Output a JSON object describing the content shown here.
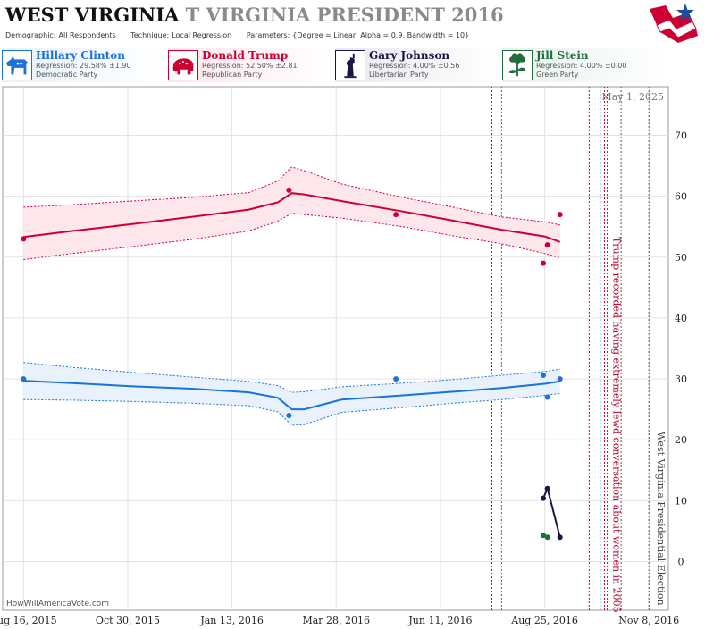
{
  "header": {
    "title_state": "WEST VIRGINIA",
    "title_sub": "T VIRGINIA PRESIDENT 2016",
    "meta": [
      {
        "label": "Demographic:",
        "value": "All Respondents"
      },
      {
        "label": "Technique:",
        "value": "Local Regression"
      },
      {
        "label": "Parameters:",
        "value": "{Degree = Linear, Alpha = 0.9, Bandwidth = 10}"
      }
    ]
  },
  "candidates": [
    {
      "name": "Hillary Clinton",
      "regression": "Regression: 29.58% ±1.90",
      "party": "Democratic Party",
      "color": "#1a73d9",
      "icon": "donkey-icon"
    },
    {
      "name": "Donald Trump",
      "regression": "Regression: 52.50% ±2.81",
      "party": "Republican Party",
      "color": "#cc0033",
      "icon": "elephant-icon"
    },
    {
      "name": "Gary Johnson",
      "regression": "Regression: 4.00% ±0.56",
      "party": "Libertarian Party",
      "color": "#1b1446",
      "icon": "liberty-statue-icon"
    },
    {
      "name": "Jill Stein",
      "regression": "Regression: 4.00% ±0.00",
      "party": "Green Party",
      "color": "#1f6e3c",
      "icon": "flower-icon"
    }
  ],
  "chart_data": {
    "type": "line",
    "title": "",
    "date_stamp": "May 1, 2025",
    "credit": "HowWillAmericaVote.com",
    "xlabel": "",
    "ylabel": "",
    "x_range": [
      "2015-08-01",
      "2016-11-22"
    ],
    "ylim": [
      -8,
      78
    ],
    "y_ticks": [
      0,
      10,
      20,
      30,
      40,
      50,
      60,
      70
    ],
    "x_ticks": [
      "2015-08-16",
      "2015-10-30",
      "2016-01-13",
      "2016-03-28",
      "2016-06-11",
      "2016-08-25",
      "2016-11-08"
    ],
    "x_tick_labels": [
      "Aug 16, 2015",
      "Oct 30, 2015",
      "Jan 13, 2016",
      "Mar 28, 2016",
      "Jun 11, 2016",
      "Aug 25, 2016",
      "Nov 8, 2016"
    ],
    "grid": true,
    "series": [
      {
        "name": "Donald Trump",
        "color": "#cc0033",
        "band_fill": "#fde6ec",
        "points": [
          [
            "2015-08-16",
            53
          ],
          [
            "2016-02-23",
            61
          ],
          [
            "2016-05-10",
            57
          ],
          [
            "2016-08-24",
            49
          ],
          [
            "2016-08-27",
            52
          ],
          [
            "2016-09-05",
            57
          ]
        ],
        "trend": [
          [
            "2015-08-16",
            53.3
          ],
          [
            "2015-09-20",
            54.3
          ],
          [
            "2015-11-01",
            55.4
          ],
          [
            "2015-12-15",
            56.6
          ],
          [
            "2016-01-25",
            57.8
          ],
          [
            "2016-02-15",
            59.0
          ],
          [
            "2016-02-25",
            60.5
          ],
          [
            "2016-03-05",
            60.3
          ],
          [
            "2016-04-01",
            59.2
          ],
          [
            "2016-05-15",
            57.5
          ],
          [
            "2016-06-20",
            56.0
          ],
          [
            "2016-07-25",
            54.5
          ],
          [
            "2016-08-25",
            53.4
          ],
          [
            "2016-09-05",
            52.5
          ]
        ],
        "upper": [
          [
            "2015-08-16",
            58.2
          ],
          [
            "2015-09-20",
            58.6
          ],
          [
            "2015-11-01",
            59.2
          ],
          [
            "2015-12-15",
            59.8
          ],
          [
            "2016-01-25",
            60.6
          ],
          [
            "2016-02-15",
            62.5
          ],
          [
            "2016-02-25",
            64.8
          ],
          [
            "2016-03-05",
            64.2
          ],
          [
            "2016-04-01",
            62.0
          ],
          [
            "2016-05-15",
            59.8
          ],
          [
            "2016-06-20",
            58.2
          ],
          [
            "2016-07-25",
            56.6
          ],
          [
            "2016-08-25",
            55.8
          ],
          [
            "2016-09-05",
            55.3
          ]
        ],
        "lower": [
          [
            "2015-08-16",
            49.6
          ],
          [
            "2015-09-20",
            50.6
          ],
          [
            "2015-11-01",
            51.7
          ],
          [
            "2015-12-15",
            52.9
          ],
          [
            "2016-01-25",
            54.3
          ],
          [
            "2016-02-15",
            55.9
          ],
          [
            "2016-02-25",
            57.2
          ],
          [
            "2016-03-05",
            57.0
          ],
          [
            "2016-04-01",
            56.4
          ],
          [
            "2016-05-15",
            55.0
          ],
          [
            "2016-06-20",
            53.5
          ],
          [
            "2016-07-25",
            52.2
          ],
          [
            "2016-08-25",
            50.6
          ],
          [
            "2016-09-05",
            49.9
          ]
        ]
      },
      {
        "name": "Hillary Clinton",
        "color": "#1a73d9",
        "band_fill": "#e8f1fc",
        "points": [
          [
            "2015-08-16",
            30
          ],
          [
            "2016-02-23",
            24
          ],
          [
            "2016-05-10",
            30
          ],
          [
            "2016-08-24",
            30.6
          ],
          [
            "2016-08-27",
            27
          ],
          [
            "2016-09-05",
            30
          ]
        ],
        "trend": [
          [
            "2015-08-16",
            29.7
          ],
          [
            "2015-09-20",
            29.3
          ],
          [
            "2015-11-01",
            28.8
          ],
          [
            "2015-12-15",
            28.4
          ],
          [
            "2016-01-25",
            27.8
          ],
          [
            "2016-02-15",
            26.9
          ],
          [
            "2016-02-25",
            25.0
          ],
          [
            "2016-03-05",
            25.0
          ],
          [
            "2016-04-01",
            26.6
          ],
          [
            "2016-05-15",
            27.3
          ],
          [
            "2016-06-20",
            27.9
          ],
          [
            "2016-07-25",
            28.5
          ],
          [
            "2016-08-25",
            29.2
          ],
          [
            "2016-09-05",
            29.6
          ]
        ],
        "upper": [
          [
            "2015-08-16",
            32.7
          ],
          [
            "2015-09-20",
            31.9
          ],
          [
            "2015-11-01",
            31.1
          ],
          [
            "2015-12-15",
            30.3
          ],
          [
            "2016-01-25",
            29.6
          ],
          [
            "2016-02-15",
            28.9
          ],
          [
            "2016-02-25",
            27.8
          ],
          [
            "2016-03-05",
            27.9
          ],
          [
            "2016-04-01",
            28.7
          ],
          [
            "2016-05-15",
            29.3
          ],
          [
            "2016-06-20",
            29.9
          ],
          [
            "2016-07-25",
            30.6
          ],
          [
            "2016-08-25",
            31.2
          ],
          [
            "2016-09-05",
            31.6
          ]
        ],
        "lower": [
          [
            "2015-08-16",
            26.6
          ],
          [
            "2015-09-20",
            26.5
          ],
          [
            "2015-11-01",
            26.3
          ],
          [
            "2015-12-15",
            26.0
          ],
          [
            "2016-01-25",
            25.6
          ],
          [
            "2016-02-15",
            24.6
          ],
          [
            "2016-02-25",
            22.4
          ],
          [
            "2016-03-05",
            22.5
          ],
          [
            "2016-04-01",
            24.5
          ],
          [
            "2016-05-15",
            25.3
          ],
          [
            "2016-06-20",
            26.0
          ],
          [
            "2016-07-25",
            26.6
          ],
          [
            "2016-08-25",
            27.3
          ],
          [
            "2016-09-05",
            27.6
          ]
        ]
      },
      {
        "name": "Gary Johnson",
        "color": "#1b1446",
        "points": [
          [
            "2016-08-24",
            10.4
          ],
          [
            "2016-08-27",
            12
          ],
          [
            "2016-09-05",
            4
          ]
        ],
        "trend": [
          [
            "2016-08-24",
            10.4
          ],
          [
            "2016-08-27",
            12
          ],
          [
            "2016-09-05",
            4
          ]
        ]
      },
      {
        "name": "Jill Stein",
        "color": "#1f6e3c",
        "points": [
          [
            "2016-08-24",
            4.3
          ],
          [
            "2016-08-27",
            4
          ]
        ],
        "trend": []
      }
    ],
    "events": [
      {
        "date": "2016-07-18",
        "color": "#cc0033",
        "label": ""
      },
      {
        "date": "2016-07-25",
        "color": "#1a73d9",
        "label": ""
      },
      {
        "date": "2016-09-26",
        "color": "#cc0033",
        "label": ""
      },
      {
        "date": "2016-10-04",
        "color": "#1a73d9",
        "label": ""
      },
      {
        "date": "2016-10-07",
        "color": "#cc0033",
        "label": "Trump recorded having extremely lewd conversation about women in 2005"
      },
      {
        "date": "2016-10-09",
        "color": "#cc0033",
        "label": ""
      },
      {
        "date": "2016-10-19",
        "color": "#555555",
        "label": ""
      },
      {
        "date": "2016-11-08",
        "color": "#555555",
        "label": "West Virginia Presidential Election"
      }
    ]
  }
}
